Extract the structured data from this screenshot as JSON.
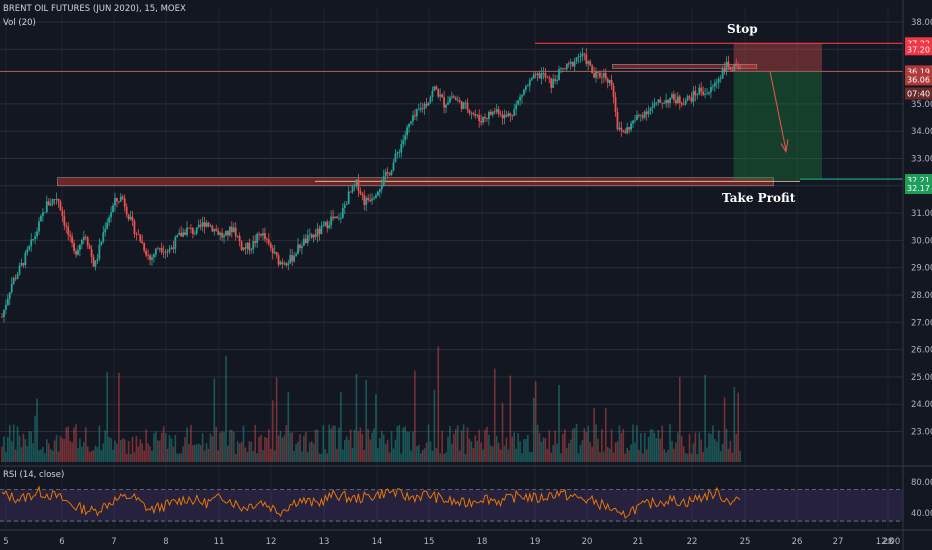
{
  "header": {
    "title": "BRENT OIL FUTURES (JUN 2020), 15, MOEX",
    "volume_label": "Vol (20)",
    "rsi_label": "RSI (14, close)"
  },
  "annotations": {
    "stop": "Stop",
    "take_profit": "Take Profit"
  },
  "colors": {
    "background": "#131722",
    "up": "#26a69a",
    "down": "#ef5350",
    "stop_line": "#f23645",
    "tp_line": "#22ab94",
    "rsi_line": "#f57c00",
    "rsi_band": "#7e57c2",
    "supply_zone": "#8b2a2a"
  },
  "price_tags": [
    {
      "label": "37.22",
      "value": 37.22,
      "kind": "stop"
    },
    {
      "label": "37.20",
      "value": 37.0,
      "kind": "stop"
    },
    {
      "label": "36.19",
      "value": 36.19,
      "kind": "last"
    },
    {
      "label": "36.06",
      "value": 35.9,
      "kind": "last"
    },
    {
      "label": "07:40",
      "value": 35.38,
      "kind": "timer"
    },
    {
      "label": "32.21",
      "value": 32.21,
      "kind": "tp"
    },
    {
      "label": "32.17",
      "value": 31.92,
      "kind": "tp"
    }
  ],
  "chart_data": [
    {
      "type": "candlestick",
      "title": "BRENT OIL FUTURES (JUN 2020), 15, MOEX",
      "y_ticks": [
        38,
        37,
        35,
        34,
        33,
        32,
        31,
        30,
        29,
        28,
        27,
        26,
        25,
        24,
        23
      ],
      "ylim": [
        22.6,
        38.2
      ],
      "x_ticks": [
        "5",
        "6",
        "7",
        "8",
        "11",
        "12",
        "13",
        "14",
        "15",
        "18",
        "19",
        "20",
        "21",
        "22",
        "25",
        "26",
        "27",
        "12:00",
        "28"
      ],
      "close_path": [
        [
          0,
          27.2
        ],
        [
          0.5,
          28.4
        ],
        [
          1,
          29.0
        ],
        [
          1.8,
          30.2
        ],
        [
          2.4,
          31.3
        ],
        [
          3.0,
          31.6
        ],
        [
          3.4,
          30.6
        ],
        [
          3.9,
          29.5
        ],
        [
          4.5,
          30.3
        ],
        [
          5.0,
          29.0
        ],
        [
          5.6,
          30.6
        ],
        [
          6.1,
          31.4
        ],
        [
          6.5,
          31.6
        ],
        [
          7.0,
          30.6
        ],
        [
          7.5,
          30.0
        ],
        [
          8.0,
          29.3
        ],
        [
          8.5,
          29.8
        ],
        [
          9.0,
          29.6
        ],
        [
          9.5,
          30.1
        ],
        [
          10.0,
          30.4
        ],
        [
          10.5,
          30.3
        ],
        [
          11.0,
          30.7
        ],
        [
          11.5,
          30.4
        ],
        [
          12.0,
          30.1
        ],
        [
          12.5,
          30.5
        ],
        [
          13.0,
          29.7
        ],
        [
          13.5,
          29.8
        ],
        [
          14.0,
          30.3
        ],
        [
          14.5,
          29.7
        ],
        [
          15.0,
          29.2
        ],
        [
          15.6,
          29.3
        ],
        [
          16.2,
          29.9
        ],
        [
          16.7,
          30.1
        ],
        [
          17.3,
          30.4
        ],
        [
          17.8,
          30.8
        ],
        [
          18.2,
          30.7
        ],
        [
          18.7,
          31.6
        ],
        [
          19.2,
          32.1
        ],
        [
          19.6,
          31.4
        ],
        [
          20.1,
          31.7
        ],
        [
          20.5,
          32.1
        ],
        [
          21.0,
          32.6
        ],
        [
          21.5,
          33.4
        ],
        [
          22.0,
          34.2
        ],
        [
          22.5,
          34.7
        ],
        [
          23.0,
          35.1
        ],
        [
          23.4,
          35.6
        ],
        [
          23.9,
          35.0
        ],
        [
          24.3,
          35.3
        ],
        [
          24.8,
          35.0
        ],
        [
          25.3,
          34.8
        ],
        [
          25.8,
          34.4
        ],
        [
          26.3,
          34.6
        ],
        [
          26.8,
          34.8
        ],
        [
          27.2,
          34.5
        ],
        [
          27.7,
          34.8
        ],
        [
          28.2,
          35.5
        ],
        [
          28.7,
          35.9
        ],
        [
          29.2,
          36.1
        ],
        [
          29.7,
          35.7
        ],
        [
          30.2,
          36.2
        ],
        [
          30.7,
          36.4
        ],
        [
          31.2,
          36.8
        ],
        [
          31.6,
          36.6
        ],
        [
          32.0,
          36.0
        ],
        [
          32.5,
          36.1
        ],
        [
          33.0,
          35.7
        ],
        [
          33.3,
          34.0
        ],
        [
          33.7,
          34.0
        ],
        [
          34.2,
          34.4
        ],
        [
          34.7,
          34.7
        ],
        [
          35.2,
          34.9
        ],
        [
          35.7,
          35.1
        ],
        [
          36.2,
          35.2
        ],
        [
          36.7,
          35.1
        ],
        [
          37.2,
          35.2
        ],
        [
          37.7,
          35.5
        ],
        [
          38.2,
          35.4
        ],
        [
          38.7,
          35.9
        ],
        [
          39.1,
          36.4
        ],
        [
          39.5,
          36.3
        ],
        [
          39.9,
          36.2
        ]
      ],
      "day_boundaries": [
        0,
        3,
        5.5,
        8,
        11,
        13.5,
        16,
        18.5,
        21,
        23.5,
        26,
        28.5,
        31,
        33.2,
        35.8,
        38.2
      ],
      "levels": [
        {
          "name": "stop_level",
          "value": 37.22
        },
        {
          "name": "current_level",
          "value": 36.19
        },
        {
          "name": "take_profit_level",
          "value": 32.21
        }
      ],
      "zones": [
        {
          "name": "support_zone",
          "x0": 3,
          "x1": 41.7,
          "y0": 32.0,
          "y1": 32.3
        },
        {
          "name": "resistance_zone",
          "x0": 33,
          "x1": 40.8,
          "y0": 36.3,
          "y1": 36.45
        }
      ],
      "position": {
        "entry": 36.19,
        "stop": 37.22,
        "target": 32.21,
        "x0": 39.6,
        "x1": 42.8
      }
    },
    {
      "type": "bar",
      "series": [
        {
          "name": "Vol (20)"
        }
      ],
      "y_ticks": [
        25,
        24,
        23
      ]
    },
    {
      "type": "line",
      "title": "RSI (14, close)",
      "y_ticks": [
        80.0,
        40.0
      ],
      "ylim": [
        25,
        95
      ],
      "bands": [
        30,
        70
      ],
      "path": [
        [
          0,
          64
        ],
        [
          1,
          58
        ],
        [
          2,
          67
        ],
        [
          3,
          61
        ],
        [
          4,
          48
        ],
        [
          5,
          42
        ],
        [
          6,
          56
        ],
        [
          7,
          62
        ],
        [
          8,
          44
        ],
        [
          9,
          51
        ],
        [
          10,
          59
        ],
        [
          11,
          53
        ],
        [
          12,
          61
        ],
        [
          13,
          47
        ],
        [
          14,
          55
        ],
        [
          15,
          42
        ],
        [
          16,
          57
        ],
        [
          17,
          52
        ],
        [
          18,
          64
        ],
        [
          19,
          58
        ],
        [
          20,
          62
        ],
        [
          21,
          68
        ],
        [
          22,
          60
        ],
        [
          23,
          64
        ],
        [
          24,
          56
        ],
        [
          25,
          52
        ],
        [
          26,
          60
        ],
        [
          27,
          55
        ],
        [
          28,
          63
        ],
        [
          29,
          58
        ],
        [
          30,
          66
        ],
        [
          31,
          60
        ],
        [
          32,
          55
        ],
        [
          33,
          45
        ],
        [
          33.4,
          34
        ],
        [
          34,
          44
        ],
        [
          35,
          52
        ],
        [
          36,
          57
        ],
        [
          37,
          54
        ],
        [
          38,
          62
        ],
        [
          38.7,
          66
        ],
        [
          39.2,
          56
        ],
        [
          39.9,
          58
        ]
      ]
    }
  ]
}
